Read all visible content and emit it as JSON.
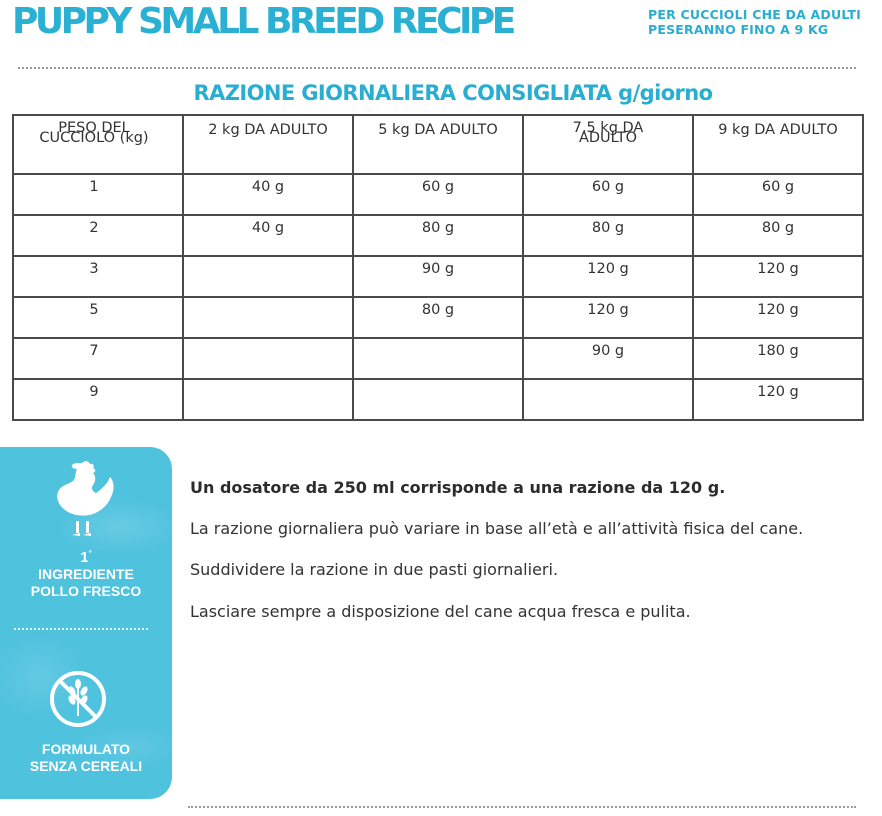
{
  "header": {
    "title": "PUPPY SMALL BREED RECIPE",
    "subtitle_line1": "PER CUCCIOLI CHE DA ADULTI",
    "subtitle_line2": "PESERANNO FINO A 9 KG"
  },
  "table": {
    "title": "RAZIONE GIORNALIERA CONSIGLIATA g/giorno",
    "headers": [
      {
        "line1": "PESO DEL",
        "line2": "CUCCIOLO (kg)"
      },
      {
        "line1": "2 kg DA ADULTO",
        "line2": ""
      },
      {
        "line1": "5 kg DA ADULTO",
        "line2": ""
      },
      {
        "line1": "7,5 kg DA",
        "line2": "ADULTO"
      },
      {
        "line1": "9 kg DA ADULTO",
        "line2": ""
      }
    ],
    "rows": [
      [
        "1",
        "40 g",
        "60 g",
        "60 g",
        "60 g"
      ],
      [
        "2",
        "40 g",
        "80 g",
        "80 g",
        "80 g"
      ],
      [
        "3",
        "",
        "90 g",
        "120 g",
        "120 g"
      ],
      [
        "5",
        "",
        "80 g",
        "120 g",
        "120 g"
      ],
      [
        "7",
        "",
        "",
        "90 g",
        "180 g"
      ],
      [
        "9",
        "",
        "",
        "",
        "120 g"
      ]
    ]
  },
  "panel": {
    "badge_number": "1",
    "badge_sup": "°",
    "ingredient_line1": "INGREDIENTE",
    "ingredient_line2": "POLLO FRESCO",
    "grain_line1": "FORMULATO",
    "grain_line2": "SENZA CEREALI",
    "icons": [
      "chicken-icon",
      "no-grain-icon"
    ],
    "color": "#4fc2de"
  },
  "info": {
    "lead": "Un dosatore da 250 ml corrisponde a una razione da 120 g.",
    "variation": "La razione giornaliera può variare in base all’età e all’attività fisica del cane.",
    "division": "Suddividere la razione in due pasti giornalieri.",
    "water": "Lasciare sempre a disposizione del cane acqua fresca e pulita."
  },
  "colors": {
    "accent": "#29aed1",
    "table_border": "#4a4a4a",
    "text": "#333333"
  }
}
